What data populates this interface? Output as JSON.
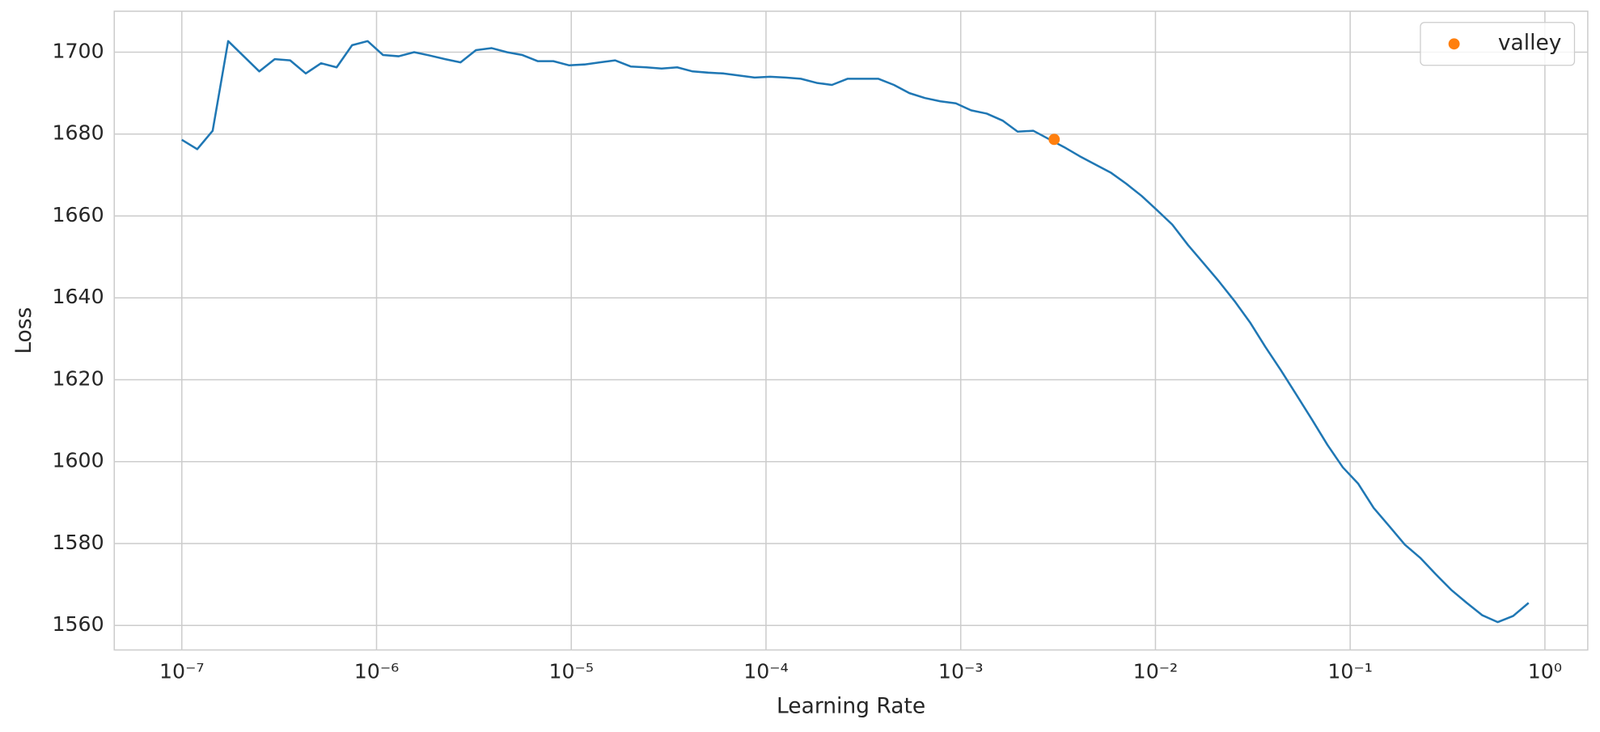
{
  "chart_data": {
    "type": "line",
    "xlabel": "Learning Rate",
    "ylabel": "Loss",
    "xscale": "log",
    "grid": true,
    "legend_loc": "upper right",
    "xlim": [
      4.5e-08,
      1.66
    ],
    "ylim": [
      1554,
      1710
    ],
    "xticks": [
      {
        "value": 1e-07,
        "label": "10⁻⁷"
      },
      {
        "value": 1e-06,
        "label": "10⁻⁶"
      },
      {
        "value": 1e-05,
        "label": "10⁻⁵"
      },
      {
        "value": 0.0001,
        "label": "10⁻⁴"
      },
      {
        "value": 0.001,
        "label": "10⁻³"
      },
      {
        "value": 0.01,
        "label": "10⁻²"
      },
      {
        "value": 0.1,
        "label": "10⁻¹"
      },
      {
        "value": 1,
        "label": "10⁰"
      }
    ],
    "yticks": [
      1560,
      1580,
      1600,
      1620,
      1640,
      1660,
      1680,
      1700
    ],
    "series": [
      {
        "type": "line",
        "color": "#1f77b4",
        "x": [
          1e-07,
          1.2e-07,
          1.44e-07,
          1.73e-07,
          2.08e-07,
          2.5e-07,
          3e-07,
          3.6e-07,
          4.33e-07,
          5.19e-07,
          6.24e-07,
          7.49e-07,
          9e-07,
          1.08e-06,
          1.3e-06,
          1.56e-06,
          1.87e-06,
          2.25e-06,
          2.7e-06,
          3.24e-06,
          3.89e-06,
          4.67e-06,
          5.61e-06,
          6.74e-06,
          8.09e-06,
          9.72e-06,
          1.17e-05,
          1.4e-05,
          1.68e-05,
          2.02e-05,
          2.43e-05,
          2.91e-05,
          3.5e-05,
          4.2e-05,
          5.05e-05,
          6.06e-05,
          7.28e-05,
          8.74e-05,
          0.000105,
          0.000126,
          0.000151,
          0.000182,
          0.000218,
          0.000262,
          0.000315,
          0.000378,
          0.000454,
          0.000545,
          0.000655,
          0.000786,
          0.000944,
          0.00113,
          0.00136,
          0.00164,
          0.00196,
          0.00236,
          0.00283,
          0.0034,
          0.00408,
          0.0049,
          0.00589,
          0.00707,
          0.00849,
          0.0102,
          0.0122,
          0.0147,
          0.0177,
          0.0212,
          0.0255,
          0.0306,
          0.0367,
          0.0441,
          0.053,
          0.0636,
          0.0764,
          0.0917,
          0.11,
          0.132,
          0.159,
          0.191,
          0.229,
          0.275,
          0.33,
          0.397,
          0.476,
          0.572,
          0.687,
          0.825
        ],
        "values": [
          1678.6,
          1676.3,
          1680.8,
          1702.7,
          1699,
          1695.3,
          1698.3,
          1698,
          1694.8,
          1697.3,
          1696.3,
          1701.7,
          1702.7,
          1699.3,
          1699,
          1700,
          1699.2,
          1698.3,
          1697.5,
          1700.5,
          1701,
          1700,
          1699.3,
          1697.8,
          1697.8,
          1696.8,
          1697,
          1697.5,
          1698,
          1696.5,
          1696.3,
          1696,
          1696.3,
          1695.3,
          1695,
          1694.8,
          1694.3,
          1693.8,
          1694,
          1693.8,
          1693.5,
          1692.5,
          1692,
          1693.5,
          1693.5,
          1693.5,
          1692,
          1690,
          1688.8,
          1688,
          1687.5,
          1685.8,
          1685,
          1683.3,
          1680.6,
          1680.8,
          1678.8,
          1676.8,
          1674.6,
          1672.6,
          1670.6,
          1667.9,
          1664.9,
          1661.4,
          1657.9,
          1652.9,
          1648.4,
          1644,
          1639.2,
          1634,
          1628,
          1622.3,
          1616.3,
          1610.3,
          1604.1,
          1598.6,
          1594.6,
          1588.7,
          1584.2,
          1579.7,
          1576.5,
          1572.5,
          1568.7,
          1565.5,
          1562.5,
          1560.8,
          1562.3,
          1565.5
        ]
      },
      {
        "type": "scatter",
        "name": "valley",
        "color": "#ff7f0e",
        "x": [
          0.00302
        ],
        "values": [
          1678.7
        ]
      }
    ]
  }
}
